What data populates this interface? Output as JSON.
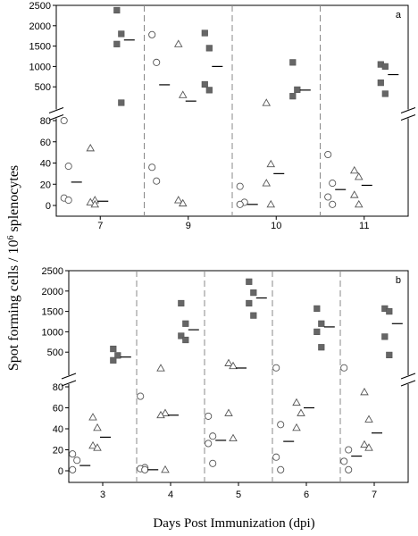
{
  "chart_data": {
    "type": "scatter",
    "ylabel_main": "Spot forming cells",
    "ylabel_unit_pre": " / 10",
    "ylabel_unit_exp": "6",
    "ylabel_unit_post": " splenocytes",
    "xlabel": "Days Post Immunization (dpi)",
    "panels": [
      {
        "label": "a",
        "upper_ticks": [
          500,
          1000,
          1500,
          2000,
          2500
        ],
        "lower_ticks": [
          0,
          20,
          40,
          60,
          80
        ],
        "upper_range": [
          0,
          2500
        ],
        "lower_range": [
          0,
          80
        ],
        "groups": [
          {
            "day": "7",
            "circle": {
              "values": [
                80,
                37,
                7,
                5
              ],
              "mean": 22
            },
            "triangle": {
              "values": [
                54,
                5,
                3,
                1
              ],
              "mean": 4
            },
            "square": {
              "values": [
                2380,
                1800,
                1550,
                110
              ],
              "mean": 1650
            }
          },
          {
            "day": "9",
            "circle": {
              "values": [
                1780,
                1100,
                36,
                23
              ],
              "mean": 550
            },
            "triangle": {
              "values": [
                1550,
                300,
                5,
                2
              ],
              "mean": 150
            },
            "square": {
              "values": [
                1820,
                1450,
                560,
                420
              ],
              "mean": 1000
            }
          },
          {
            "day": "10",
            "circle": {
              "values": [
                18,
                3,
                1
              ],
              "mean": 1
            },
            "triangle": {
              "values": [
                105,
                39,
                21,
                1
              ],
              "mean": 30
            },
            "square": {
              "values": [
                1100,
                430,
                270
              ],
              "mean": 420
            }
          },
          {
            "day": "11",
            "circle": {
              "values": [
                48,
                21,
                8,
                1
              ],
              "mean": 15
            },
            "triangle": {
              "values": [
                33,
                27,
                10,
                1
              ],
              "mean": 19
            },
            "square": {
              "values": [
                1050,
                1000,
                600,
                330
              ],
              "mean": 800
            }
          }
        ]
      },
      {
        "label": "b",
        "upper_ticks": [
          500,
          1000,
          1500,
          2000,
          2500
        ],
        "lower_ticks": [
          0,
          20,
          40,
          60,
          80
        ],
        "upper_range": [
          0,
          2500
        ],
        "lower_range": [
          0,
          80
        ],
        "groups": [
          {
            "day": "3",
            "circle": {
              "values": [
                16,
                10,
                1
              ],
              "mean": 5
            },
            "triangle": {
              "values": [
                51,
                41,
                24,
                22
              ],
              "mean": 32
            },
            "square": {
              "values": [
                580,
                420,
                300
              ],
              "mean": 380
            }
          },
          {
            "day": "4",
            "circle": {
              "values": [
                71,
                3,
                2,
                1
              ],
              "mean": 1
            },
            "triangle": {
              "values": [
                105,
                55,
                53,
                1
              ],
              "mean": 53
            },
            "square": {
              "values": [
                1700,
                1200,
                900,
                800
              ],
              "mean": 1050
            }
          },
          {
            "day": "5",
            "circle": {
              "values": [
                52,
                33,
                26,
                7
              ],
              "mean": 29
            },
            "triangle": {
              "values": [
                230,
                160,
                55,
                31
              ],
              "mean": 110
            },
            "square": {
              "values": [
                2230,
                1960,
                1700,
                1400
              ],
              "mean": 1830
            }
          },
          {
            "day": "6",
            "circle": {
              "values": [
                115,
                44,
                13,
                1
              ],
              "mean": 28
            },
            "triangle": {
              "values": [
                65,
                55,
                41
              ],
              "mean": 60
            },
            "square": {
              "values": [
                1570,
                1200,
                1000,
                620
              ],
              "mean": 1120
            }
          },
          {
            "day": "7",
            "circle": {
              "values": [
                115,
                20,
                9,
                1
              ],
              "mean": 14
            },
            "triangle": {
              "values": [
                75,
                49,
                25,
                22
              ],
              "mean": 36
            },
            "square": {
              "values": [
                1570,
                1500,
                880,
                430
              ],
              "mean": 1200
            }
          }
        ]
      }
    ]
  }
}
